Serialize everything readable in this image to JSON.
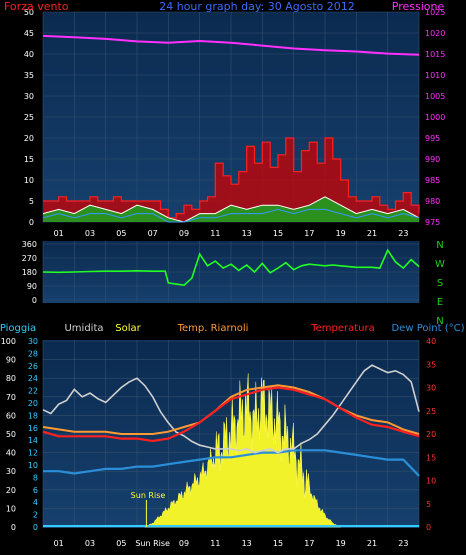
{
  "colors": {
    "background": "#000000",
    "plot_top": "#0b2a4f",
    "plot_bottom": "#143a66",
    "grid": "#33506f",
    "wind_label": "#ff2020",
    "title": "#3a6cff",
    "pressure": "#ff30ff",
    "direction": "#22ff22",
    "nwsen": "#22cc22",
    "rain": "#33ccff",
    "humidity": "#d0d0d0",
    "solar": "#ffff33",
    "heat_index": "#ff9933",
    "temperature": "#ff2020",
    "dew_point": "#2a8fd8",
    "hum_axis": "#ffffff",
    "rain_axis": "#33ccff",
    "temp_axis": "#ff3030",
    "x_ticks": "#ffffff"
  },
  "chart_data": [
    {
      "id": "wind-pressure",
      "type": "line",
      "title": "24 hour graph day: 30 Agosto 2012",
      "left_label": "Forza vento",
      "right_label": "Pressione",
      "x_ticks": [
        "01",
        "03",
        "05",
        "07",
        "09",
        "11",
        "13",
        "15",
        "17",
        "19",
        "21",
        "23"
      ],
      "ylim_left": [
        0,
        50
      ],
      "y_ticks_left": [
        0,
        5,
        10,
        15,
        20,
        25,
        30,
        35,
        40,
        45,
        50
      ],
      "ylim_right": [
        975,
        1025
      ],
      "y_ticks_right": [
        975,
        980,
        985,
        990,
        995,
        1000,
        1005,
        1010,
        1015,
        1020,
        1025
      ],
      "series": [
        {
          "name": "Pressione",
          "axis": "right",
          "x": [
            0,
            2,
            4,
            6,
            8,
            10,
            12,
            14,
            16,
            18,
            20,
            22,
            24
          ],
          "y": [
            1019.3,
            1019.0,
            1018.6,
            1018.0,
            1017.7,
            1018.1,
            1017.7,
            1017.0,
            1016.3,
            1015.9,
            1015.6,
            1015.1,
            1014.8
          ]
        },
        {
          "name": "gust",
          "axis": "left",
          "x": [
            0,
            0.5,
            1,
            1.5,
            2,
            2.5,
            3,
            3.5,
            4,
            4.5,
            5,
            5.5,
            6,
            6.5,
            7,
            7.5,
            8,
            8.5,
            9,
            9.5,
            10,
            10.5,
            11,
            11.5,
            12,
            12.5,
            13,
            13.5,
            14,
            14.5,
            15,
            15.5,
            16,
            16.5,
            17,
            17.5,
            18,
            18.5,
            19,
            19.5,
            20,
            20.5,
            21,
            21.5,
            22,
            22.5,
            23,
            23.5,
            24
          ],
          "y": [
            5,
            5,
            6,
            5,
            5,
            5,
            6,
            5,
            5,
            6,
            5,
            5,
            5,
            5,
            5,
            3,
            1,
            2,
            4,
            3,
            5,
            6,
            14,
            11,
            9,
            12,
            18,
            14,
            19,
            13,
            16,
            20,
            12,
            17,
            19,
            14,
            20,
            15,
            10,
            6,
            5,
            5,
            6,
            4,
            3,
            5,
            7,
            4,
            2
          ]
        },
        {
          "name": "wind-avg",
          "axis": "left",
          "x": [
            0,
            1,
            2,
            3,
            4,
            5,
            6,
            7,
            8,
            9,
            10,
            11,
            12,
            13,
            14,
            15,
            16,
            17,
            18,
            19,
            20,
            21,
            22,
            23,
            24
          ],
          "y": [
            2,
            3,
            2,
            4,
            3,
            2,
            4,
            3,
            1,
            0,
            2,
            2,
            4,
            3,
            4,
            4,
            3,
            4,
            6,
            4,
            2,
            3,
            2,
            3,
            1
          ]
        },
        {
          "name": "wind-mean",
          "axis": "left",
          "x": [
            0,
            1,
            2,
            3,
            4,
            5,
            6,
            7,
            8,
            9,
            10,
            11,
            12,
            13,
            14,
            15,
            16,
            17,
            18,
            19,
            20,
            21,
            22,
            23,
            24
          ],
          "y": [
            1,
            2,
            1,
            2,
            2,
            1,
            2,
            2,
            0,
            0,
            1,
            1,
            2,
            2,
            2,
            3,
            2,
            3,
            3,
            2,
            1,
            2,
            1,
            2,
            1
          ]
        }
      ]
    },
    {
      "id": "wind-direction",
      "type": "line",
      "ylim": [
        0,
        360
      ],
      "y_ticks": [
        0,
        90,
        180,
        270,
        360
      ],
      "direction_labels": [
        "N",
        "W",
        "S",
        "E",
        "N"
      ],
      "series": [
        {
          "name": "direction",
          "x": [
            0,
            1,
            2,
            3,
            4,
            5,
            6,
            7,
            7.8,
            8.0,
            8.5,
            9,
            9.5,
            10,
            10.5,
            11,
            11.5,
            12,
            12.5,
            13,
            13.5,
            14,
            14.5,
            15,
            15.5,
            16,
            16.5,
            17,
            17.5,
            18,
            18.5,
            19,
            19.5,
            20,
            20.5,
            21,
            21.5,
            22,
            22.5,
            23,
            23.5,
            24
          ],
          "y": [
            180,
            178,
            180,
            183,
            185,
            185,
            188,
            185,
            185,
            110,
            102,
            95,
            140,
            295,
            220,
            250,
            205,
            230,
            190,
            225,
            180,
            235,
            175,
            205,
            240,
            195,
            220,
            230,
            225,
            220,
            225,
            220,
            215,
            210,
            210,
            210,
            205,
            320,
            245,
            205,
            260,
            215
          ]
        }
      ]
    },
    {
      "id": "temperature-humidity",
      "type": "line",
      "labels": [
        "Pioggia",
        "Umidita",
        "Solar",
        "Temp. Riarnoli",
        "Temperatura",
        "Dew Point (°C)"
      ],
      "x_ticks": [
        "01",
        "03",
        "05",
        "Sun Rise",
        "09",
        "11",
        "13",
        "15",
        "17",
        "19",
        "21",
        "23"
      ],
      "annotations": [
        "Sun Rise"
      ],
      "ylim_humidity": [
        0,
        100
      ],
      "y_ticks_humidity": [
        0,
        10,
        20,
        30,
        40,
        50,
        60,
        70,
        80,
        90,
        100
      ],
      "ylim_rain": [
        0,
        30
      ],
      "y_ticks_rain": [
        0,
        2,
        4,
        6,
        8,
        10,
        12,
        14,
        16,
        18,
        20,
        22,
        24,
        26,
        28,
        30
      ],
      "ylim_temp": [
        0,
        40
      ],
      "y_ticks_temp": [
        0,
        5,
        10,
        15,
        20,
        25,
        30,
        35,
        40
      ],
      "series": [
        {
          "name": "Umidita",
          "axis": "humidity",
          "x": [
            0,
            0.5,
            1,
            1.5,
            2,
            2.5,
            3,
            3.5,
            4,
            4.5,
            5,
            5.5,
            6,
            6.5,
            7,
            7.5,
            8,
            8.5,
            9,
            9.5,
            10,
            10.5,
            11,
            11.5,
            12,
            12.5,
            13,
            13.5,
            14,
            14.5,
            15,
            15.5,
            16,
            16.5,
            17,
            17.5,
            18,
            18.5,
            19,
            19.5,
            20,
            20.5,
            21,
            21.5,
            22,
            22.5,
            23,
            23.5,
            24
          ],
          "y": [
            63,
            61,
            66,
            68,
            74,
            70,
            72,
            69,
            67,
            71,
            75,
            78,
            80,
            76,
            70,
            62,
            56,
            51,
            49,
            46,
            44,
            43,
            42,
            42,
            42,
            41,
            42,
            40,
            41,
            42,
            40,
            42,
            42,
            45,
            47,
            50,
            55,
            60,
            66,
            72,
            78,
            84,
            87,
            85,
            83,
            84,
            82,
            78,
            62
          ]
        },
        {
          "name": "Temp. Riarnoli",
          "axis": "temp",
          "x": [
            0,
            1,
            2,
            3,
            4,
            5,
            6,
            7,
            8,
            9,
            10,
            11,
            12,
            13,
            14,
            15,
            16,
            17,
            18,
            19,
            20,
            21,
            22,
            23,
            24
          ],
          "y": [
            21.5,
            21,
            20.5,
            20.5,
            20.5,
            20,
            20,
            20,
            20.5,
            21.5,
            22.5,
            25,
            28,
            29.5,
            30,
            30.5,
            30,
            29,
            27.5,
            25.5,
            24,
            23,
            22.5,
            21,
            20
          ]
        },
        {
          "name": "Temperatura",
          "axis": "temp",
          "x": [
            0,
            1,
            2,
            3,
            4,
            5,
            6,
            7,
            8,
            9,
            10,
            11,
            12,
            13,
            14,
            15,
            16,
            17,
            18,
            19,
            20,
            21,
            22,
            23,
            24
          ],
          "y": [
            20.5,
            19.5,
            19.5,
            19.5,
            19.5,
            19,
            19,
            18.5,
            19,
            20.5,
            22.5,
            25,
            27.5,
            28.5,
            29.5,
            30,
            29.5,
            28.5,
            27.5,
            25.5,
            23.5,
            22,
            21.5,
            20.5,
            19.5
          ]
        },
        {
          "name": "Dew Point (°C)",
          "axis": "temp",
          "x": [
            0,
            1,
            2,
            3,
            4,
            5,
            6,
            7,
            8,
            9,
            10,
            11,
            12,
            13,
            14,
            15,
            16,
            17,
            18,
            19,
            20,
            21,
            22,
            23,
            24
          ],
          "y": [
            12,
            12,
            11.5,
            12,
            12.5,
            12.5,
            13,
            13,
            13.5,
            14,
            14.5,
            15,
            15,
            15.5,
            16,
            16,
            16.5,
            16.5,
            16.5,
            16,
            15.5,
            15,
            14.5,
            14.5,
            11
          ]
        },
        {
          "name": "Solar",
          "axis": "temp",
          "x": [
            6.5,
            7,
            7.5,
            8,
            8.5,
            9,
            9.5,
            10,
            10.5,
            11,
            11.5,
            12,
            12.5,
            13,
            13.5,
            14,
            14.5,
            15,
            15.5,
            16,
            16.5,
            17,
            17.5,
            18,
            18.5,
            19
          ],
          "y": [
            0,
            1,
            3,
            5,
            7,
            9,
            11,
            13,
            16,
            19,
            22,
            25,
            29,
            32,
            28,
            33,
            30,
            27,
            24,
            20,
            15,
            10,
            6,
            3,
            1,
            0
          ]
        },
        {
          "name": "Pioggia",
          "axis": "rain",
          "x": [
            0,
            24
          ],
          "y": [
            0,
            0
          ]
        }
      ]
    }
  ]
}
